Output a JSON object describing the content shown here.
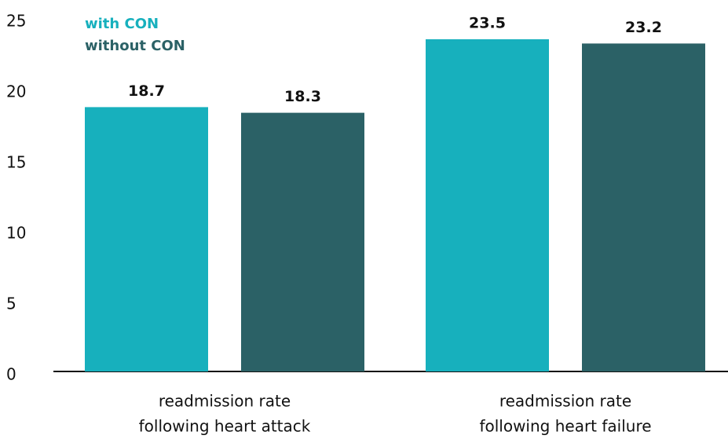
{
  "chart_data": {
    "type": "bar",
    "categories": [
      [
        "readmission rate",
        "following heart attack"
      ],
      [
        "readmission rate",
        "following heart failure"
      ]
    ],
    "series": [
      {
        "name": "with CON",
        "color": "#17b0bd",
        "values": [
          18.7,
          23.5
        ]
      },
      {
        "name": "without CON",
        "color": "#2b6166",
        "values": [
          18.3,
          23.2
        ]
      }
    ],
    "ylim": [
      0,
      25
    ],
    "yticks": [
      0,
      5,
      10,
      15,
      20,
      25
    ],
    "grid": false,
    "legend": "top-left"
  }
}
